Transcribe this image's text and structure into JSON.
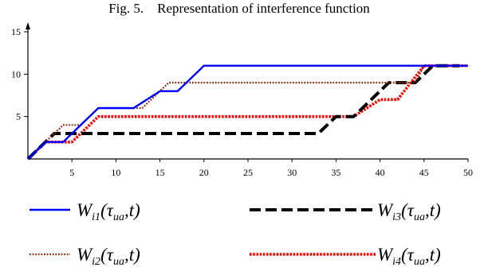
{
  "figure_title": "Fig. 5.    Representation of interference function",
  "chart_data": {
    "type": "line",
    "title": "Fig. 5.    Representation of interference function",
    "xlabel": "",
    "ylabel": "",
    "xlim": [
      0,
      50
    ],
    "ylim": [
      0,
      15
    ],
    "x_ticks": [
      5,
      10,
      15,
      20,
      25,
      30,
      35,
      40,
      45,
      50
    ],
    "y_ticks": [
      5,
      10,
      15
    ],
    "grid": false,
    "legend_position": "bottom",
    "series": [
      {
        "name": "W_i1(τ_ua,t)",
        "legend": {
          "main": "W",
          "sub1": "i1",
          "mid": "(τ",
          "sub2": "ua",
          "end": ",t)"
        },
        "color": "#0000ff",
        "style": "solid",
        "x": [
          0,
          2,
          4,
          5,
          8,
          12,
          15,
          17,
          20,
          50
        ],
        "y": [
          0,
          2,
          2,
          3,
          6,
          6,
          8,
          8,
          11,
          11
        ]
      },
      {
        "name": "W_i2(τ_ua,t)",
        "legend": {
          "main": "W",
          "sub1": "i2",
          "mid": "(τ",
          "sub2": "ua",
          "end": ",t)"
        },
        "color": "#8b2a0f",
        "style": "dotted",
        "x": [
          0,
          2,
          3,
          4,
          6,
          8,
          13,
          16,
          44,
          45,
          50
        ],
        "y": [
          0,
          2,
          3,
          4,
          4,
          6,
          6,
          9,
          9,
          11,
          11
        ]
      },
      {
        "name": "W_i3(τ_ua,t)",
        "legend": {
          "main": "W",
          "sub1": "i3",
          "mid": "(τ",
          "sub2": "ua",
          "end": ",t)"
        },
        "color": "#000000",
        "style": "dashed",
        "x": [
          0,
          3,
          33,
          35,
          37,
          41,
          44,
          46,
          49
        ],
        "y": [
          0,
          3,
          3,
          5,
          5,
          9,
          9,
          11,
          11
        ]
      },
      {
        "name": "W_i4(τ_ua,t)",
        "legend": {
          "main": "W",
          "sub1": "i4",
          "mid": "(τ",
          "sub2": "ua",
          "end": ",t)"
        },
        "color": "#ff0000",
        "style": "dotted-bold",
        "x": [
          0,
          2,
          5,
          8,
          37,
          40,
          42,
          45,
          50
        ],
        "y": [
          0,
          2,
          2,
          5,
          5,
          7,
          7,
          11,
          11
        ]
      }
    ]
  }
}
